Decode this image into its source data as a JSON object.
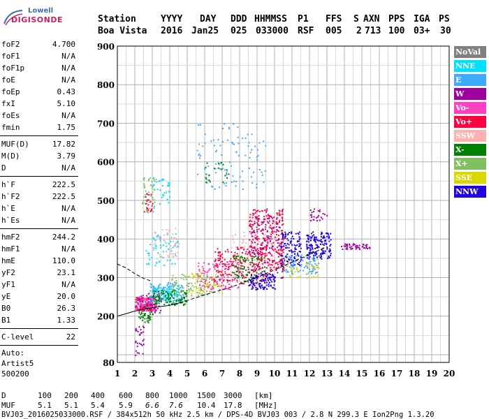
{
  "logo": {
    "line1": "Lowell",
    "line2": "DIGISONDE"
  },
  "header": {
    "labels": [
      "Station",
      "YYYY",
      "DAY",
      "DDD",
      "HHMMSS",
      "P1",
      "FFS",
      "S",
      "AXN",
      "PPS",
      "IGA",
      "PS"
    ],
    "values": [
      "Boa Vista",
      "2016",
      "Jan25",
      "025",
      "033000",
      "RSF",
      "005",
      "2",
      "713",
      "100",
      "03+",
      "30"
    ]
  },
  "params": {
    "group1": [
      {
        "name": "foF2",
        "value": "4.700"
      },
      {
        "name": "foF1",
        "value": "N/A"
      },
      {
        "name": "foF1p",
        "value": "N/A"
      },
      {
        "name": "foE",
        "value": "N/A"
      },
      {
        "name": "foEp",
        "value": "0.43"
      },
      {
        "name": "fxI",
        "value": "5.10"
      },
      {
        "name": "foEs",
        "value": "N/A"
      },
      {
        "name": "fmin",
        "value": "1.75"
      }
    ],
    "group2": [
      {
        "name": "MUF(D)",
        "value": "17.82"
      },
      {
        "name": "M(D)",
        "value": "3.79"
      },
      {
        "name": "D",
        "value": "N/A"
      }
    ],
    "group3": [
      {
        "name": "h`F",
        "value": "222.5"
      },
      {
        "name": "h`F2",
        "value": "222.5"
      },
      {
        "name": "h`E",
        "value": "N/A"
      },
      {
        "name": "h`Es",
        "value": "N/A"
      }
    ],
    "group4": [
      {
        "name": "hmF2",
        "value": "244.2"
      },
      {
        "name": "hmF1",
        "value": "N/A"
      },
      {
        "name": "hmE",
        "value": "110.0"
      },
      {
        "name": "yF2",
        "value": "23.1"
      },
      {
        "name": "yF1",
        "value": "N/A"
      },
      {
        "name": "yE",
        "value": "20.0"
      },
      {
        "name": "B0",
        "value": "26.3"
      },
      {
        "name": "B1",
        "value": "1.33"
      }
    ],
    "group5": [
      {
        "name": "C-level",
        "value": "22"
      }
    ],
    "info": [
      "Auto:",
      "Artist5",
      "500200"
    ]
  },
  "legend": [
    {
      "label": "NoVal",
      "color": "#808080"
    },
    {
      "label": "NNE",
      "color": "#00e0ff"
    },
    {
      "label": "E",
      "color": "#40a8ff"
    },
    {
      "label": "W",
      "color": "#a000a0"
    },
    {
      "label": "Vo-",
      "color": "#ff40c0"
    },
    {
      "label": "Vo+",
      "color": "#ff0040"
    },
    {
      "label": "SSW",
      "color": "#ffb0b0"
    },
    {
      "label": "X-",
      "color": "#008000"
    },
    {
      "label": "X+",
      "color": "#80c060"
    },
    {
      "label": "SSE",
      "color": "#d8d800"
    },
    {
      "label": "NNW",
      "color": "#2000e0"
    }
  ],
  "footer": {
    "d_label": "D",
    "d_values": [
      "100",
      "200",
      "400",
      "600",
      "800",
      "1000",
      "1500",
      "3000",
      "[km]"
    ],
    "muf_label": "MUF",
    "muf_values": [
      "5.1",
      "5.1",
      "5.4",
      "5.9",
      "6.6",
      "7.6",
      "10.4",
      "17.8",
      "[MHz]"
    ],
    "file_line": "BVJ03_2016025033000.RSF / 384x512h 50 kHz 2.5 km / DPS-4D BVJ03 003 / 2.8 N 299.3 E Ion2Png 1.3.20"
  },
  "chart_data": {
    "type": "scatter",
    "xlim": [
      1,
      20
    ],
    "ylim": [
      80,
      900
    ],
    "x_ticks": [
      1,
      2,
      3,
      4,
      5,
      6,
      7,
      8,
      9,
      10,
      11,
      12,
      13,
      14,
      15,
      16,
      17,
      18,
      19,
      20
    ],
    "y_ticks": [
      80,
      200,
      300,
      400,
      500,
      600,
      700,
      800,
      900
    ],
    "grid": true,
    "legend_position": "right",
    "clusters": [
      {
        "series": "X-",
        "x": [
          2.2,
          3.0
        ],
        "y": [
          185,
          230
        ],
        "n": 60
      },
      {
        "series": "Vo+",
        "x": [
          2.0,
          3.2
        ],
        "y": [
          215,
          250
        ],
        "n": 120
      },
      {
        "series": "Vo-",
        "x": [
          2.0,
          3.2
        ],
        "y": [
          215,
          250
        ],
        "n": 80
      },
      {
        "series": "W",
        "x": [
          2.0,
          3.5
        ],
        "y": [
          210,
          260
        ],
        "n": 60
      },
      {
        "series": "E",
        "x": [
          2.8,
          4.8
        ],
        "y": [
          235,
          290
        ],
        "n": 120
      },
      {
        "series": "NNE",
        "x": [
          3.0,
          4.5
        ],
        "y": [
          240,
          280
        ],
        "n": 80
      },
      {
        "series": "X-",
        "x": [
          3.0,
          5.0
        ],
        "y": [
          230,
          270
        ],
        "n": 100
      },
      {
        "series": "X+",
        "x": [
          4.0,
          6.5
        ],
        "y": [
          255,
          310
        ],
        "n": 100
      },
      {
        "series": "SSE",
        "x": [
          5.0,
          7.0
        ],
        "y": [
          260,
          320
        ],
        "n": 60
      },
      {
        "series": "Vo-",
        "x": [
          5.5,
          8.0
        ],
        "y": [
          270,
          340
        ],
        "n": 120
      },
      {
        "series": "Vo+",
        "x": [
          6.5,
          9.5
        ],
        "y": [
          285,
          380
        ],
        "n": 200
      },
      {
        "series": "Vo+",
        "x": [
          8.5,
          10.5
        ],
        "y": [
          320,
          480
        ],
        "n": 260
      },
      {
        "series": "W",
        "x": [
          8.5,
          10.5
        ],
        "y": [
          300,
          460
        ],
        "n": 120
      },
      {
        "series": "SSW",
        "x": [
          7.5,
          10.0
        ],
        "y": [
          300,
          420
        ],
        "n": 80
      },
      {
        "series": "X-",
        "x": [
          7.5,
          9.5
        ],
        "y": [
          290,
          360
        ],
        "n": 80
      },
      {
        "series": "NNW",
        "x": [
          8.5,
          10.0
        ],
        "y": [
          270,
          310
        ],
        "n": 100
      },
      {
        "series": "NNW",
        "x": [
          10.3,
          11.5
        ],
        "y": [
          330,
          420
        ],
        "n": 120
      },
      {
        "series": "NNW",
        "x": [
          11.8,
          13.2
        ],
        "y": [
          350,
          420
        ],
        "n": 160
      },
      {
        "series": "E",
        "x": [
          10.5,
          12.5
        ],
        "y": [
          310,
          360
        ],
        "n": 80
      },
      {
        "series": "SSE",
        "x": [
          10.5,
          12.5
        ],
        "y": [
          300,
          350
        ],
        "n": 40
      },
      {
        "series": "W",
        "x": [
          13.8,
          15.5
        ],
        "y": [
          375,
          390
        ],
        "n": 50
      },
      {
        "series": "W",
        "x": [
          12.0,
          13.0
        ],
        "y": [
          440,
          480
        ],
        "n": 25
      },
      {
        "series": "NNE",
        "x": [
          2.6,
          4.5
        ],
        "y": [
          330,
          420
        ],
        "n": 60
      },
      {
        "series": "SSW",
        "x": [
          3.0,
          4.5
        ],
        "y": [
          350,
          430
        ],
        "n": 50
      },
      {
        "series": "W",
        "x": [
          2.0,
          2.5
        ],
        "y": [
          100,
          180
        ],
        "n": 30
      },
      {
        "series": "X+",
        "x": [
          2.4,
          3.2
        ],
        "y": [
          470,
          560
        ],
        "n": 50
      },
      {
        "series": "Vo+",
        "x": [
          2.5,
          3.0
        ],
        "y": [
          470,
          520
        ],
        "n": 20
      },
      {
        "series": "NNE",
        "x": [
          3.0,
          4.0
        ],
        "y": [
          480,
          560
        ],
        "n": 30
      },
      {
        "series": "E",
        "x": [
          5.5,
          9.5
        ],
        "y": [
          530,
          700
        ],
        "n": 100
      },
      {
        "series": "X-",
        "x": [
          6.0,
          7.5
        ],
        "y": [
          540,
          600
        ],
        "n": 20
      }
    ],
    "curves": [
      {
        "name": "profile",
        "x": [
          1.0,
          2.0,
          3.0,
          4.0,
          4.6
        ],
        "y": [
          200,
          213,
          222,
          228,
          235
        ],
        "style": "solid"
      },
      {
        "name": "upper",
        "x": [
          1.0,
          1.5,
          2.0,
          2.5,
          3.0
        ],
        "y": [
          335,
          325,
          310,
          298,
          290
        ],
        "style": "dashed"
      },
      {
        "name": "mid",
        "x": [
          4.6,
          6.0,
          7.5,
          9.0,
          10.5,
          12.0,
          13.0
        ],
        "y": [
          235,
          255,
          275,
          300,
          330,
          360,
          380
        ],
        "style": "dashed"
      }
    ]
  }
}
